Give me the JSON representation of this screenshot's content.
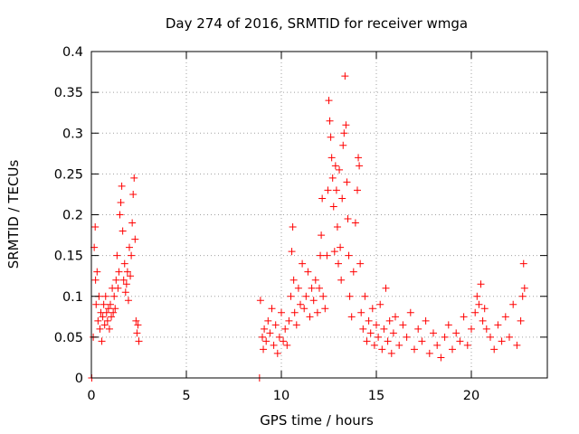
{
  "chart_data": {
    "type": "scatter",
    "title": "Day 274 of 2016, SRMTID for receiver wmga",
    "xlabel": "GPS time / hours",
    "ylabel": "SRMTID / TECUs",
    "xlim": [
      0,
      24
    ],
    "ylim": [
      0,
      0.4
    ],
    "xticks": [
      0,
      5,
      10,
      15,
      20
    ],
    "xtick_labels": [
      "0",
      "5",
      "10",
      "15",
      "20"
    ],
    "yticks": [
      0,
      0.05,
      0.1,
      0.15,
      0.2,
      0.25,
      0.3,
      0.35,
      0.4
    ],
    "ytick_labels": [
      "0",
      "0.05",
      "0.1",
      "0.15",
      "0.2",
      "0.25",
      "0.3",
      "0.35",
      "0.4"
    ],
    "grid": true,
    "marker": "+",
    "series_color": "#ff0000",
    "series": [
      {
        "name": "SRMTID",
        "points": [
          [
            0.02,
            0.0
          ],
          [
            8.85,
            0.0
          ],
          [
            0.1,
            0.05
          ],
          [
            0.15,
            0.16
          ],
          [
            0.2,
            0.185
          ],
          [
            0.22,
            0.12
          ],
          [
            0.25,
            0.09
          ],
          [
            0.3,
            0.13
          ],
          [
            0.35,
            0.07
          ],
          [
            0.4,
            0.1
          ],
          [
            0.45,
            0.06
          ],
          [
            0.5,
            0.08
          ],
          [
            0.55,
            0.045
          ],
          [
            0.6,
            0.075
          ],
          [
            0.65,
            0.09
          ],
          [
            0.7,
            0.065
          ],
          [
            0.75,
            0.1
          ],
          [
            0.8,
            0.08
          ],
          [
            0.85,
            0.07
          ],
          [
            0.9,
            0.085
          ],
          [
            0.95,
            0.06
          ],
          [
            1.0,
            0.09
          ],
          [
            1.05,
            0.075
          ],
          [
            1.1,
            0.11
          ],
          [
            1.15,
            0.08
          ],
          [
            1.2,
            0.1
          ],
          [
            1.25,
            0.085
          ],
          [
            1.3,
            0.12
          ],
          [
            1.35,
            0.15
          ],
          [
            1.4,
            0.11
          ],
          [
            1.45,
            0.13
          ],
          [
            1.5,
            0.2
          ],
          [
            1.55,
            0.215
          ],
          [
            1.6,
            0.235
          ],
          [
            1.65,
            0.18
          ],
          [
            1.7,
            0.12
          ],
          [
            1.75,
            0.14
          ],
          [
            1.8,
            0.105
          ],
          [
            1.85,
            0.115
          ],
          [
            1.9,
            0.13
          ],
          [
            1.95,
            0.095
          ],
          [
            2.0,
            0.16
          ],
          [
            2.05,
            0.125
          ],
          [
            2.1,
            0.15
          ],
          [
            2.15,
            0.19
          ],
          [
            2.2,
            0.225
          ],
          [
            2.25,
            0.245
          ],
          [
            2.3,
            0.17
          ],
          [
            2.35,
            0.07
          ],
          [
            2.4,
            0.055
          ],
          [
            2.45,
            0.065
          ],
          [
            2.5,
            0.045
          ],
          [
            8.9,
            0.095
          ],
          [
            9.0,
            0.05
          ],
          [
            9.05,
            0.035
          ],
          [
            9.1,
            0.06
          ],
          [
            9.2,
            0.045
          ],
          [
            9.3,
            0.07
          ],
          [
            9.4,
            0.055
          ],
          [
            9.5,
            0.085
          ],
          [
            9.6,
            0.04
          ],
          [
            9.7,
            0.065
          ],
          [
            9.8,
            0.03
          ],
          [
            9.9,
            0.05
          ],
          [
            10.0,
            0.08
          ],
          [
            10.1,
            0.045
          ],
          [
            10.2,
            0.06
          ],
          [
            10.3,
            0.04
          ],
          [
            10.4,
            0.07
          ],
          [
            10.5,
            0.1
          ],
          [
            10.55,
            0.155
          ],
          [
            10.6,
            0.185
          ],
          [
            10.65,
            0.12
          ],
          [
            10.7,
            0.08
          ],
          [
            10.8,
            0.065
          ],
          [
            10.9,
            0.11
          ],
          [
            11.0,
            0.09
          ],
          [
            11.1,
            0.14
          ],
          [
            11.2,
            0.085
          ],
          [
            11.3,
            0.1
          ],
          [
            11.4,
            0.13
          ],
          [
            11.5,
            0.075
          ],
          [
            11.6,
            0.11
          ],
          [
            11.7,
            0.095
          ],
          [
            11.8,
            0.12
          ],
          [
            11.9,
            0.08
          ],
          [
            12.0,
            0.11
          ],
          [
            12.05,
            0.15
          ],
          [
            12.1,
            0.175
          ],
          [
            12.15,
            0.22
          ],
          [
            12.2,
            0.1
          ],
          [
            12.3,
            0.085
          ],
          [
            12.4,
            0.15
          ],
          [
            12.45,
            0.23
          ],
          [
            12.5,
            0.34
          ],
          [
            12.55,
            0.315
          ],
          [
            12.6,
            0.295
          ],
          [
            12.65,
            0.27
          ],
          [
            12.7,
            0.245
          ],
          [
            12.75,
            0.21
          ],
          [
            12.8,
            0.155
          ],
          [
            12.85,
            0.26
          ],
          [
            12.9,
            0.23
          ],
          [
            12.95,
            0.185
          ],
          [
            13.0,
            0.14
          ],
          [
            13.05,
            0.255
          ],
          [
            13.1,
            0.16
          ],
          [
            13.15,
            0.12
          ],
          [
            13.2,
            0.22
          ],
          [
            13.25,
            0.285
          ],
          [
            13.3,
            0.3
          ],
          [
            13.35,
            0.37
          ],
          [
            13.4,
            0.31
          ],
          [
            13.45,
            0.24
          ],
          [
            13.5,
            0.195
          ],
          [
            13.55,
            0.15
          ],
          [
            13.6,
            0.1
          ],
          [
            13.7,
            0.075
          ],
          [
            13.8,
            0.13
          ],
          [
            13.9,
            0.19
          ],
          [
            14.0,
            0.23
          ],
          [
            14.05,
            0.27
          ],
          [
            14.1,
            0.26
          ],
          [
            14.15,
            0.14
          ],
          [
            14.2,
            0.08
          ],
          [
            14.3,
            0.06
          ],
          [
            14.4,
            0.1
          ],
          [
            14.5,
            0.045
          ],
          [
            14.6,
            0.07
          ],
          [
            14.7,
            0.055
          ],
          [
            14.8,
            0.085
          ],
          [
            14.9,
            0.04
          ],
          [
            15.0,
            0.065
          ],
          [
            15.1,
            0.05
          ],
          [
            15.2,
            0.09
          ],
          [
            15.3,
            0.035
          ],
          [
            15.4,
            0.06
          ],
          [
            15.5,
            0.11
          ],
          [
            15.6,
            0.045
          ],
          [
            15.7,
            0.07
          ],
          [
            15.8,
            0.03
          ],
          [
            15.9,
            0.055
          ],
          [
            16.0,
            0.075
          ],
          [
            16.2,
            0.04
          ],
          [
            16.4,
            0.065
          ],
          [
            16.6,
            0.05
          ],
          [
            16.8,
            0.08
          ],
          [
            17.0,
            0.035
          ],
          [
            17.2,
            0.06
          ],
          [
            17.4,
            0.045
          ],
          [
            17.6,
            0.07
          ],
          [
            17.8,
            0.03
          ],
          [
            18.0,
            0.055
          ],
          [
            18.2,
            0.04
          ],
          [
            18.4,
            0.025
          ],
          [
            18.6,
            0.05
          ],
          [
            18.8,
            0.065
          ],
          [
            19.0,
            0.035
          ],
          [
            19.2,
            0.055
          ],
          [
            19.4,
            0.045
          ],
          [
            19.6,
            0.075
          ],
          [
            19.8,
            0.04
          ],
          [
            20.0,
            0.06
          ],
          [
            20.2,
            0.08
          ],
          [
            20.3,
            0.1
          ],
          [
            20.4,
            0.09
          ],
          [
            20.5,
            0.115
          ],
          [
            20.6,
            0.07
          ],
          [
            20.7,
            0.085
          ],
          [
            20.8,
            0.06
          ],
          [
            21.0,
            0.05
          ],
          [
            21.2,
            0.035
          ],
          [
            21.4,
            0.065
          ],
          [
            21.6,
            0.045
          ],
          [
            21.8,
            0.075
          ],
          [
            22.0,
            0.05
          ],
          [
            22.2,
            0.09
          ],
          [
            22.4,
            0.04
          ],
          [
            22.6,
            0.07
          ],
          [
            22.7,
            0.1
          ],
          [
            22.75,
            0.14
          ],
          [
            22.8,
            0.11
          ]
        ]
      }
    ]
  }
}
